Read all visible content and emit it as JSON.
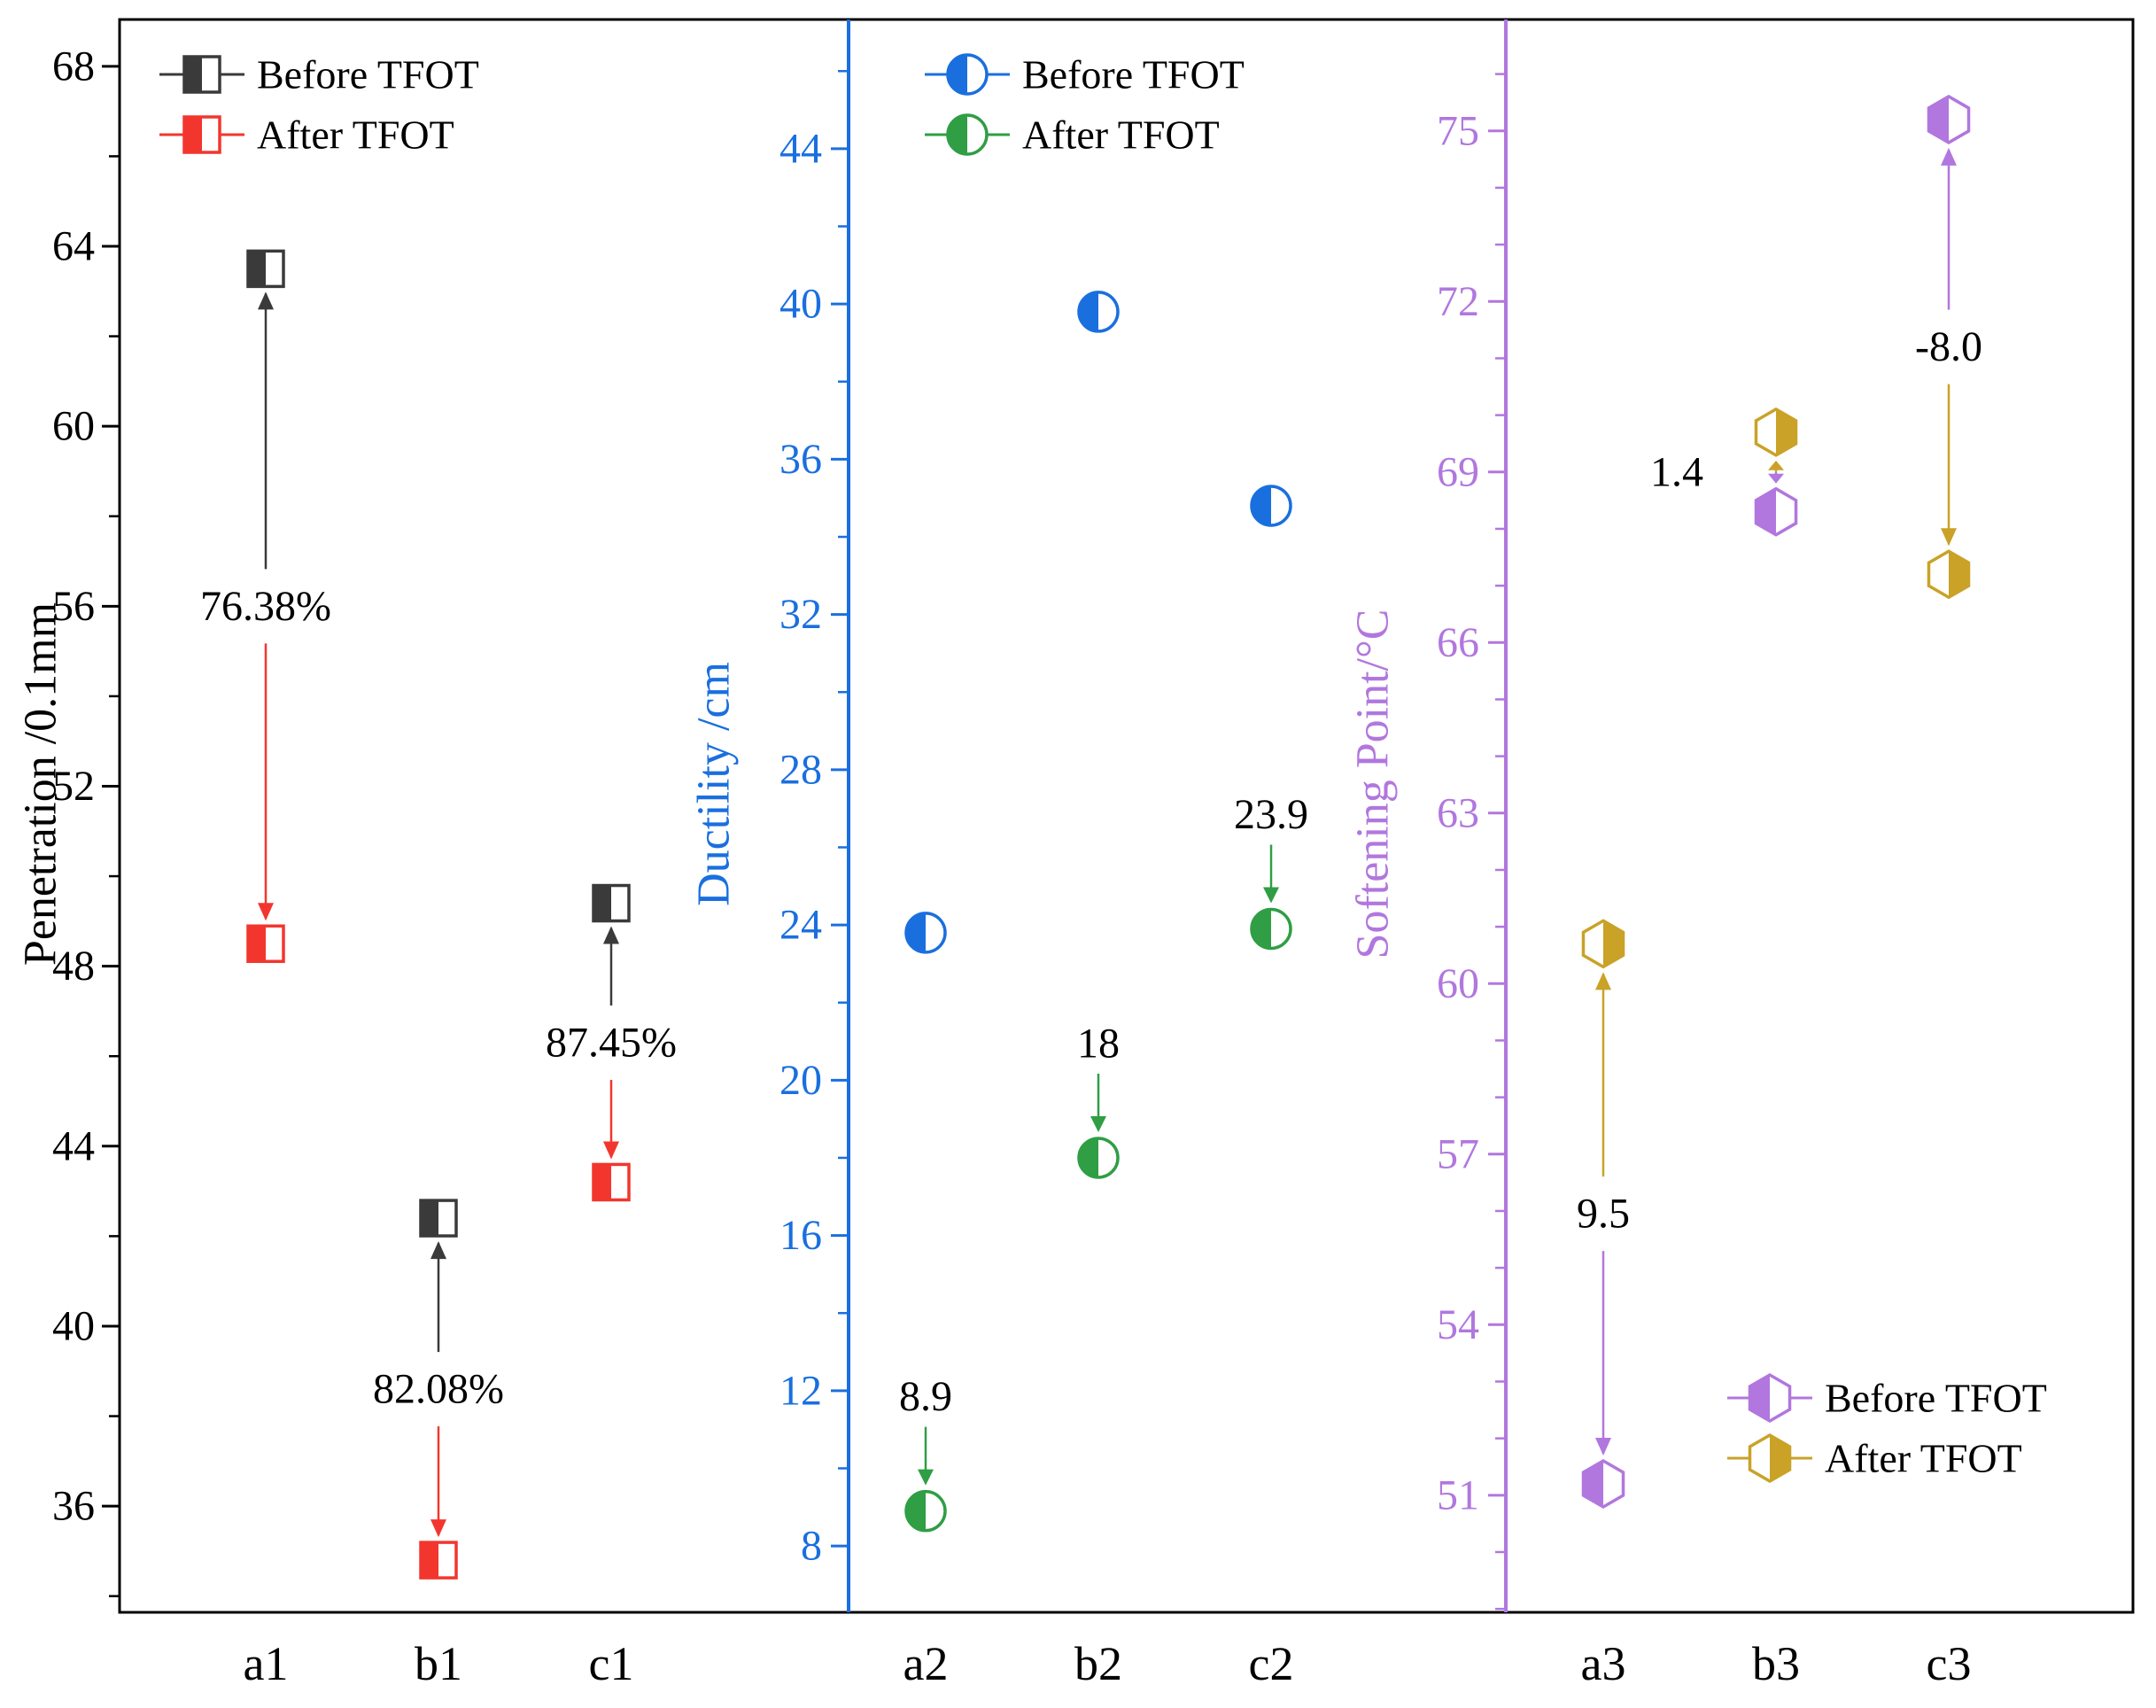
{
  "chart_data": {
    "type": "scatter",
    "description": "Three-panel before/after TFOT aging comparison chart",
    "panels": [
      {
        "id": "penetration",
        "ylabel": "Penetration /0.1mm",
        "axis_color": "#000000",
        "ylim": [
          33.64,
          69.04
        ],
        "yticks": [
          36,
          40,
          44,
          48,
          52,
          56,
          60,
          64,
          68
        ],
        "minor_tick_step": 2,
        "categories": [
          "a1",
          "b1",
          "c1"
        ],
        "series": [
          {
            "name": "Before TFOT",
            "marker": "square",
            "color": "#3a3a3a",
            "fill_side": "left",
            "values": [
              63.5,
              42.4,
              49.4
            ]
          },
          {
            "name": "After TFOT",
            "marker": "square",
            "color": "#f2362e",
            "fill_side": "left",
            "values": [
              48.5,
              34.8,
              43.2
            ]
          }
        ],
        "annotations": [
          {
            "category": "a1",
            "text": "76.38%",
            "arrow": "double"
          },
          {
            "category": "b1",
            "text": "82.08%",
            "arrow": "double"
          },
          {
            "category": "c1",
            "text": "87.45%",
            "arrow": "double"
          }
        ],
        "legend": {
          "position": "top-left",
          "entries": [
            "Before TFOT",
            "After TFOT"
          ]
        }
      },
      {
        "id": "ductility",
        "ylabel": "Ductility /cm",
        "axis_color": "#1a6fdf",
        "ylim": [
          6.29,
          47.33
        ],
        "yticks": [
          8,
          12,
          16,
          20,
          24,
          28,
          32,
          36,
          40,
          44
        ],
        "minor_tick_step": 2,
        "categories": [
          "a2",
          "b2",
          "c2"
        ],
        "series": [
          {
            "name": "Before TFOT",
            "marker": "circle",
            "color": "#1a6fdf",
            "fill_side": "left",
            "values": [
              23.8,
              39.8,
              34.8
            ]
          },
          {
            "name": "After TFOT",
            "marker": "circle",
            "color": "#2f9e44",
            "fill_side": "left",
            "values": [
              8.9,
              18,
              23.9
            ]
          }
        ],
        "annotations": [
          {
            "category": "a2",
            "text": "8.9",
            "arrow": "down"
          },
          {
            "category": "b2",
            "text": "18",
            "arrow": "down"
          },
          {
            "category": "c2",
            "text": "23.9",
            "arrow": "down"
          }
        ],
        "legend": {
          "position": "top",
          "entries": [
            "Before TFOT",
            "After TFOT"
          ]
        }
      },
      {
        "id": "softening-point",
        "ylabel": "Softening Point/°C",
        "axis_color": "#b177de",
        "ylim": [
          48.94,
          76.96
        ],
        "yticks": [
          51,
          54,
          57,
          60,
          63,
          66,
          69,
          72,
          75
        ],
        "minor_tick_step": 1,
        "categories": [
          "a3",
          "b3",
          "c3"
        ],
        "series": [
          {
            "name": "Before TFOT",
            "marker": "hexagon",
            "color": "#b177de",
            "fill_side": "left",
            "values": [
              51.2,
              68.3,
              75.2
            ]
          },
          {
            "name": "After TFOT",
            "marker": "hexagon",
            "color": "#c9a227",
            "fill_side": "right",
            "values": [
              60.7,
              69.7,
              67.2
            ]
          }
        ],
        "annotations": [
          {
            "category": "a3",
            "text": "9.5",
            "arrow": "double"
          },
          {
            "category": "b3",
            "text": "1.4",
            "arrow": "double",
            "text_offset_x": -112
          },
          {
            "category": "c3",
            "text": "-8.0",
            "arrow": "double"
          }
        ],
        "legend": {
          "position": "bottom-right",
          "entries": [
            "Before TFOT",
            "After TFOT"
          ]
        }
      }
    ]
  }
}
